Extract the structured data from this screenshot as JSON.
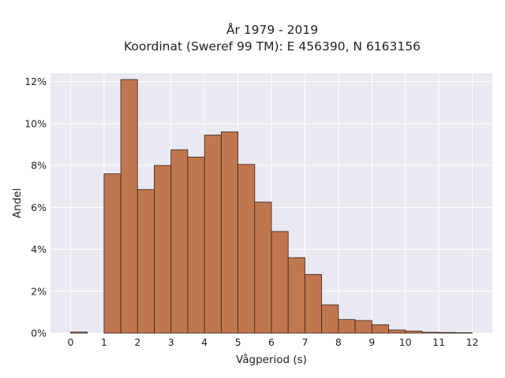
{
  "chart_data": {
    "type": "bar",
    "title": "År 1979 - 2019",
    "subtitle": "Koordinat (Sweref 99 TM): E 456390, N 6163156",
    "xlabel": "Vågperiod (s)",
    "ylabel": "Andel",
    "bin_width": 0.5,
    "bin_starts": [
      0,
      0.5,
      1,
      1.5,
      2,
      2.5,
      3,
      3.5,
      4,
      4.5,
      5,
      5.5,
      6,
      6.5,
      7,
      7.5,
      8,
      8.5,
      9,
      9.5,
      10,
      10.5,
      11,
      11.5
    ],
    "values": [
      0.05,
      0,
      7.6,
      12.1,
      6.85,
      8.0,
      8.75,
      8.4,
      9.45,
      9.6,
      8.05,
      6.25,
      4.85,
      3.6,
      2.8,
      1.35,
      0.65,
      0.6,
      0.4,
      0.15,
      0.1,
      0.04,
      0.03,
      0.02
    ],
    "x_ticks": [
      "0",
      "1",
      "2",
      "3",
      "4",
      "5",
      "6",
      "7",
      "8",
      "9",
      "10",
      "11",
      "12"
    ],
    "y_ticks": [
      "0%",
      "2%",
      "4%",
      "6%",
      "8%",
      "10%",
      "12%"
    ],
    "xlim": [
      -0.6,
      12.6
    ],
    "ylim": [
      0,
      12.4
    ],
    "grid": true,
    "colors": {
      "bar_fill": "#c0764f",
      "bar_edge": "#3a2418",
      "plot_background": "#e9e9f1",
      "grid": "#ffffff"
    }
  }
}
